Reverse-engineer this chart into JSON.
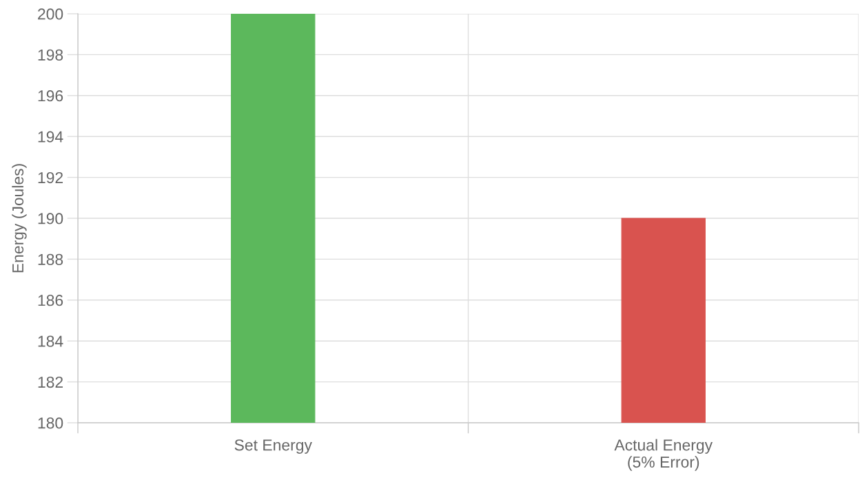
{
  "chart_data": {
    "type": "bar",
    "ylabel": "Energy (Joules)",
    "categories": [
      "Set Energy",
      "Actual Energy\n(5% Error)"
    ],
    "values": [
      200,
      190
    ],
    "colors": [
      "#5cb85c",
      "#d9534f"
    ],
    "ylim": [
      180,
      200
    ],
    "yticks": [
      180,
      182,
      184,
      186,
      188,
      190,
      192,
      194,
      196,
      198,
      200
    ],
    "grid": true
  }
}
